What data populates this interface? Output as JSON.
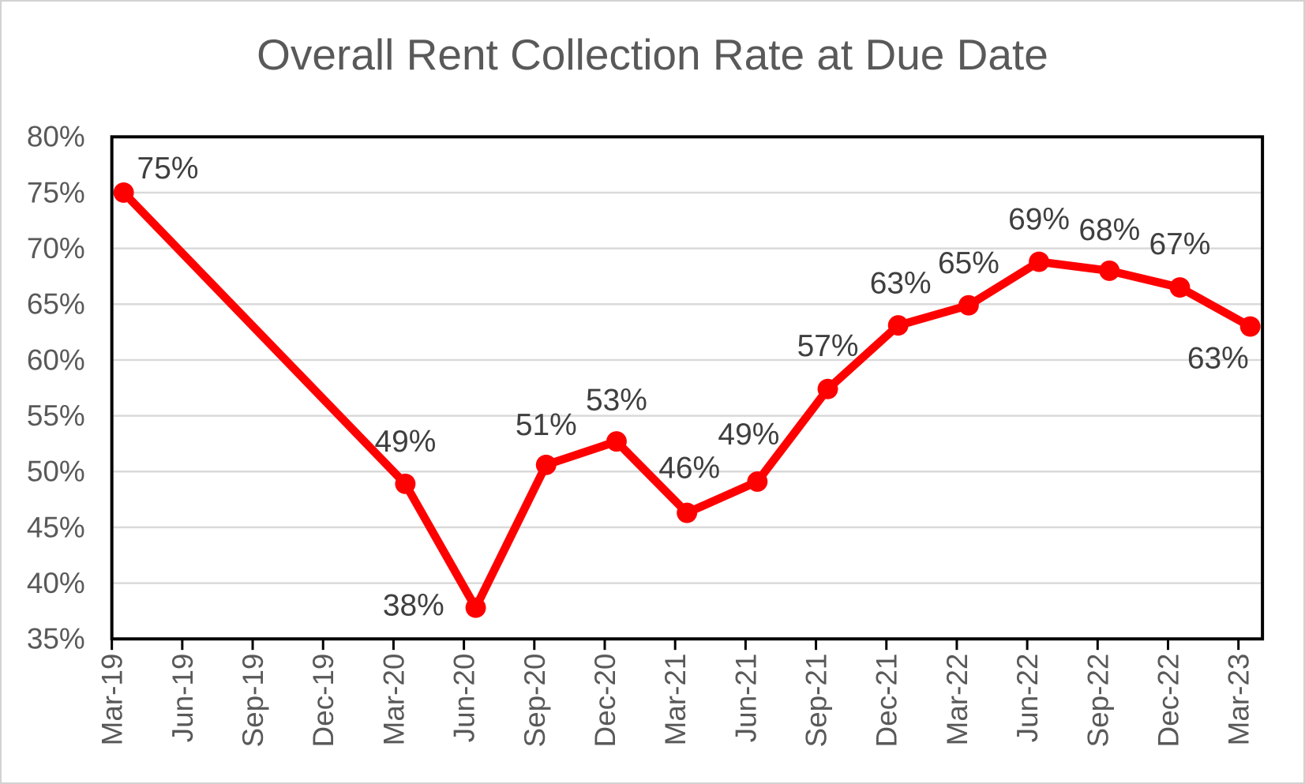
{
  "window": {
    "background": "#ffffff",
    "border_color": "#d2d2d2"
  },
  "title": {
    "text": "Overall Rent Collection Rate at Due Date",
    "color": "#595959"
  },
  "chart_data": {
    "type": "line",
    "title": "Overall Rent Collection Rate at Due Date",
    "xlabel": "",
    "ylabel": "",
    "grid": "horizontal",
    "legend": "none",
    "x_categories": [
      "Mar-19",
      "Jun-19",
      "Sep-19",
      "Dec-19",
      "Mar-20",
      "Jun-20",
      "Sep-20",
      "Dec-20",
      "Mar-21",
      "Jun-21",
      "Sep-21",
      "Dec-21",
      "Mar-22",
      "Jun-22",
      "Sep-22",
      "Dec-22",
      "Mar-23"
    ],
    "y_axis": {
      "min": 35,
      "max": 80,
      "step": 5,
      "tick_labels": [
        "35%",
        "40%",
        "45%",
        "50%",
        "55%",
        "60%",
        "65%",
        "70%",
        "75%",
        "80%"
      ]
    },
    "axis_text_color": "#595959",
    "data_label_color": "#3f3f3f",
    "grid_color": "#d9d9d9",
    "axis_line_color": "#000000",
    "series": [
      {
        "name": "Overall rent collection rate",
        "color": "#ff0000",
        "marker": "circle",
        "points": [
          {
            "category": "Mar-19",
            "x_index": 0,
            "value": 75,
            "label": "75%",
            "plotted": 75.0,
            "label_offset": [
              56,
              -31
            ]
          },
          {
            "category": "Mar-20",
            "x_index": 4,
            "value": 49,
            "label": "49%",
            "plotted": 48.9,
            "label_offset": [
              0,
              -54
            ]
          },
          {
            "category": "Jun-20",
            "x_index": 5,
            "value": 38,
            "label": "38%",
            "plotted": 37.8,
            "label_offset": [
              -79,
              -3
            ]
          },
          {
            "category": "Sep-20",
            "x_index": 6,
            "value": 51,
            "label": "51%",
            "plotted": 50.6,
            "label_offset": [
              0,
              -51
            ]
          },
          {
            "category": "Dec-20",
            "x_index": 7,
            "value": 53,
            "label": "53%",
            "plotted": 52.7,
            "label_offset": [
              0,
              -53
            ]
          },
          {
            "category": "Mar-21",
            "x_index": 8,
            "value": 46,
            "label": "46%",
            "plotted": 46.3,
            "label_offset": [
              3,
              -57
            ]
          },
          {
            "category": "Jun-21",
            "x_index": 9,
            "value": 49,
            "label": "49%",
            "plotted": 49.1,
            "label_offset": [
              -11,
              -60
            ]
          },
          {
            "category": "Sep-21",
            "x_index": 10,
            "value": 57,
            "label": "57%",
            "plotted": 57.4,
            "label_offset": [
              0,
              -55
            ]
          },
          {
            "category": "Dec-21",
            "x_index": 11,
            "value": 63,
            "label": "63%",
            "plotted": 63.1,
            "label_offset": [
              3,
              -54
            ]
          },
          {
            "category": "Mar-22",
            "x_index": 12,
            "value": 65,
            "label": "65%",
            "plotted": 64.9,
            "label_offset": [
              0,
              -54
            ]
          },
          {
            "category": "Jun-22",
            "x_index": 13,
            "value": 69,
            "label": "69%",
            "plotted": 68.8,
            "label_offset": [
              0,
              -54
            ]
          },
          {
            "category": "Sep-22",
            "x_index": 14,
            "value": 68,
            "label": "68%",
            "plotted": 68.0,
            "label_offset": [
              0,
              -52
            ]
          },
          {
            "category": "Dec-22",
            "x_index": 15,
            "value": 67,
            "label": "67%",
            "plotted": 66.5,
            "label_offset": [
              0,
              -55
            ]
          },
          {
            "category": "Mar-23",
            "x_index": 16,
            "value": 63,
            "label": "63%",
            "plotted": 63.0,
            "label_offset": [
              -41,
              40
            ]
          }
        ]
      }
    ]
  }
}
